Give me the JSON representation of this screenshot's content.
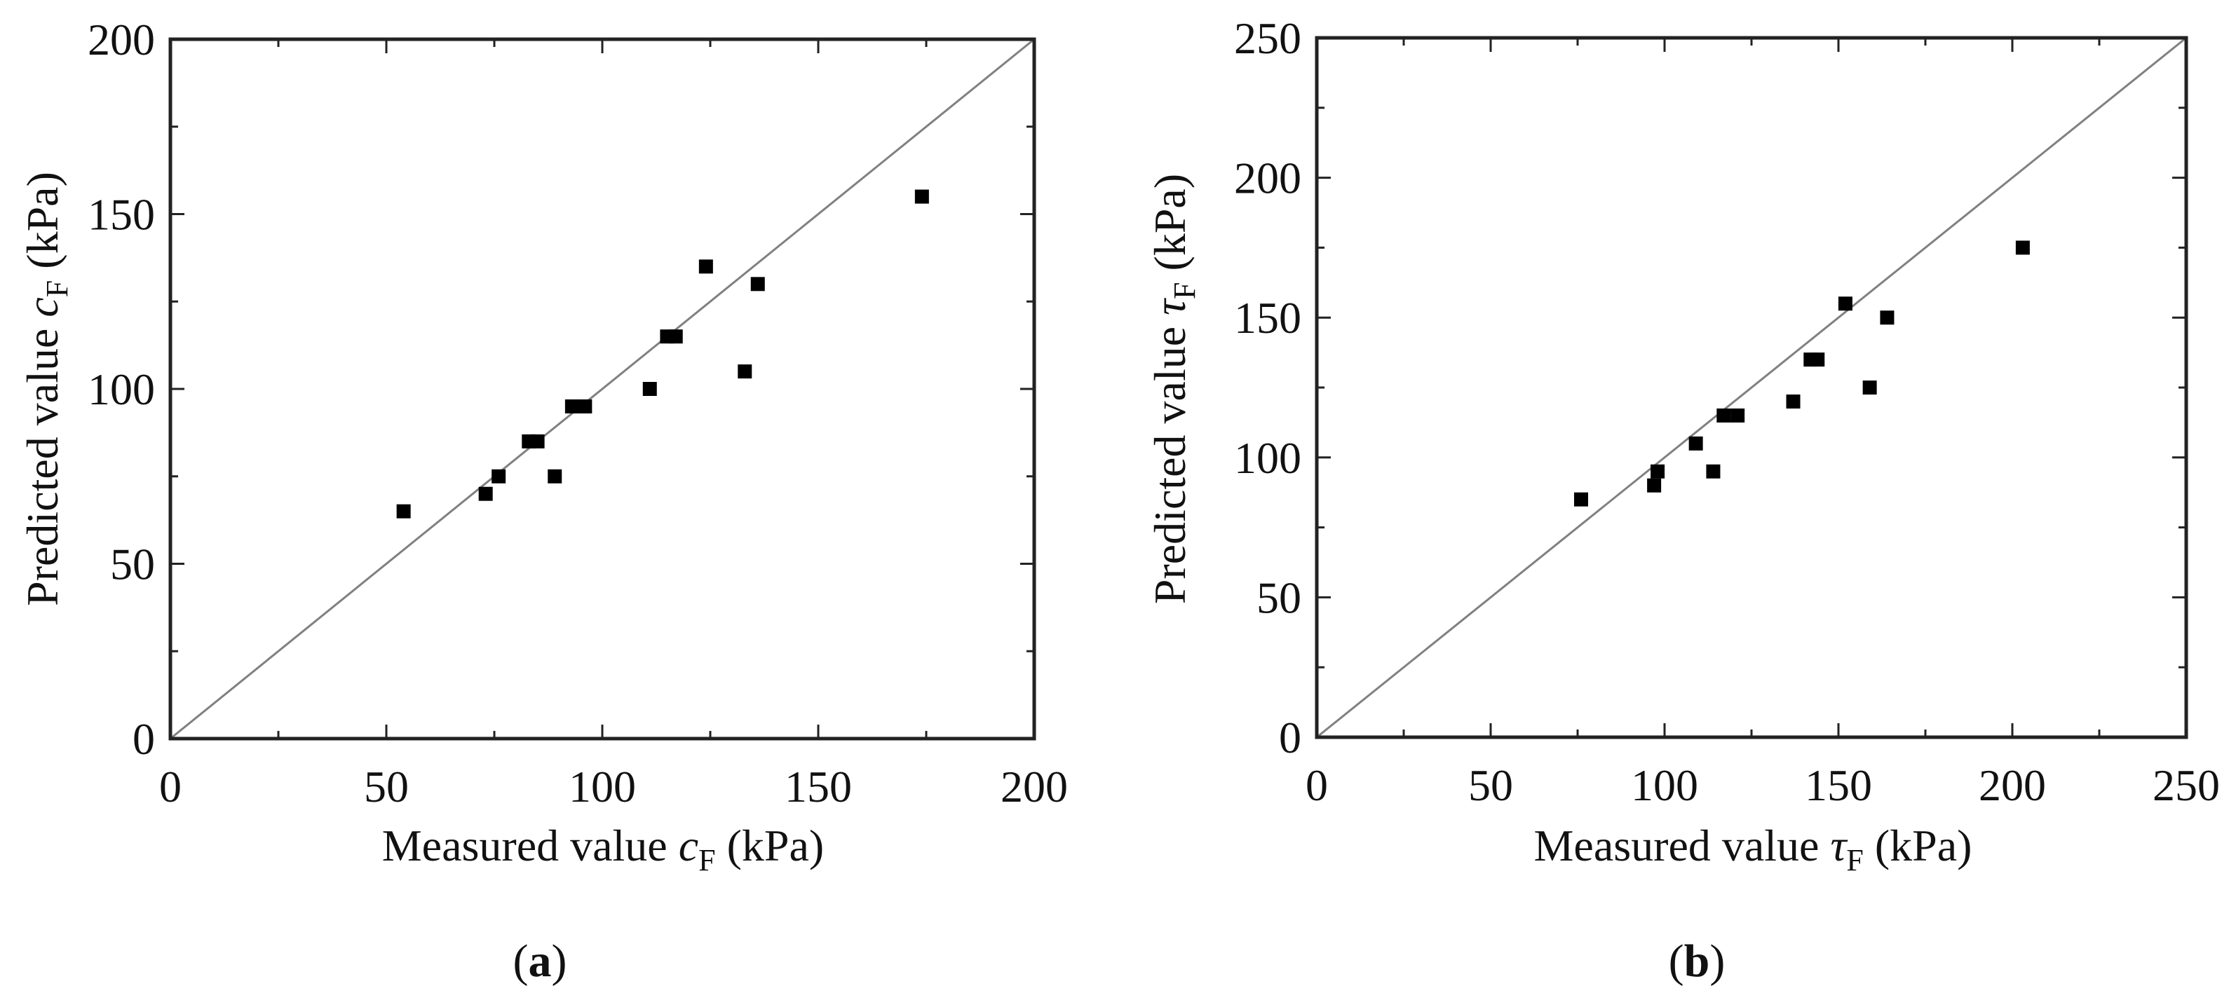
{
  "figure": {
    "panels": [
      {
        "id": "a",
        "caption_open": "(",
        "caption_letter": "a",
        "caption_close": ")",
        "xlabel": {
          "prefix": "Measured value ",
          "symbol": "c",
          "subscript": "F",
          "suffix": " (kPa)"
        },
        "ylabel": {
          "prefix": "Predicted value ",
          "symbol": "c",
          "subscript": "F",
          "suffix": " (kPa)"
        },
        "xticks": [
          "0",
          "50",
          "100",
          "150",
          "200"
        ],
        "yticks": [
          "0",
          "50",
          "100",
          "150",
          "200"
        ]
      },
      {
        "id": "b",
        "caption_open": "(",
        "caption_letter": "b",
        "caption_close": ")",
        "xlabel": {
          "prefix": "Measured value ",
          "symbol": "τ",
          "subscript": "F",
          "suffix": " (kPa)"
        },
        "ylabel": {
          "prefix": "Predicted value ",
          "symbol": "τ",
          "subscript": "F",
          "suffix": " (kPa)"
        },
        "xticks": [
          "0",
          "50",
          "100",
          "150",
          "200",
          "250"
        ],
        "yticks": [
          "0",
          "50",
          "100",
          "150",
          "200",
          "250"
        ]
      }
    ]
  },
  "colors": {
    "marker": "#000000",
    "axis": "#222222",
    "reference_line": "#808080",
    "text": "#111111"
  },
  "chart_data": [
    {
      "type": "scatter",
      "panel": "(a)",
      "title": "",
      "xlabel": "Measured value cF (kPa)",
      "ylabel": "Predicted value cF (kPa)",
      "xlim": [
        0,
        200
      ],
      "ylim": [
        0,
        200
      ],
      "xticks": [
        0,
        50,
        100,
        150,
        200
      ],
      "yticks": [
        0,
        50,
        100,
        150,
        200
      ],
      "minor_ticks": 25,
      "grid": false,
      "legend": null,
      "marker": "filled-square",
      "reference_line": {
        "type": "y=x",
        "from": [
          0,
          0
        ],
        "to": [
          200,
          200
        ]
      },
      "series": [
        {
          "name": "cF",
          "x": [
            54,
            73,
            76,
            89,
            83,
            85,
            93,
            96,
            111,
            115,
            117,
            124,
            133,
            136,
            174
          ],
          "y": [
            65,
            70,
            75,
            75,
            85,
            85,
            95,
            95,
            100,
            115,
            115,
            135,
            105,
            130,
            155
          ]
        }
      ]
    },
    {
      "type": "scatter",
      "panel": "(b)",
      "title": "",
      "xlabel": "Measured value τF (kPa)",
      "ylabel": "Predicted value τF (kPa)",
      "xlim": [
        0,
        250
      ],
      "ylim": [
        0,
        250
      ],
      "xticks": [
        0,
        50,
        100,
        150,
        200,
        250
      ],
      "yticks": [
        0,
        50,
        100,
        150,
        200,
        250
      ],
      "minor_ticks": 25,
      "grid": false,
      "legend": null,
      "marker": "filled-square",
      "reference_line": {
        "type": "y=x",
        "from": [
          0,
          0
        ],
        "to": [
          250,
          250
        ]
      },
      "series": [
        {
          "name": "τF",
          "x": [
            76,
            97,
            98,
            109,
            114,
            117,
            121,
            137,
            142,
            144,
            152,
            159,
            164,
            203
          ],
          "y": [
            85,
            90,
            95,
            105,
            95,
            115,
            115,
            120,
            135,
            135,
            155,
            125,
            150,
            175
          ]
        }
      ]
    }
  ]
}
